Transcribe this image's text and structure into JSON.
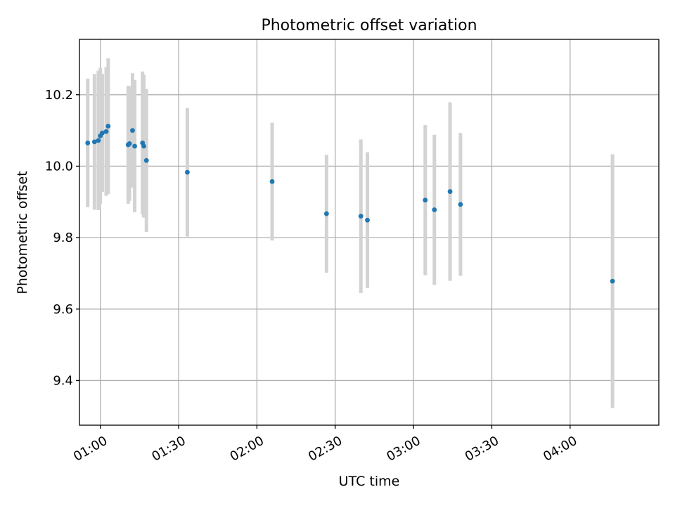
{
  "chart_data": {
    "type": "scatter",
    "title": "Photometric offset variation",
    "xlabel": "UTC time",
    "ylabel": "Photometric offset",
    "xlim": [
      "00:52",
      "04:34"
    ],
    "ylim": [
      9.275,
      10.355
    ],
    "x_ticks": [
      "01:00",
      "01:30",
      "02:00",
      "02:30",
      "03:00",
      "03:30",
      "04:00"
    ],
    "y_ticks": [
      9.4,
      9.6,
      9.8,
      10.0,
      10.2
    ],
    "grid": true,
    "point_color": "#1f77b4",
    "errorbar_color": "#d3d3d3",
    "points": [
      {
        "x": "00:55:10",
        "y": 10.065,
        "err": 0.18
      },
      {
        "x": "00:57:45",
        "y": 10.068,
        "err": 0.19
      },
      {
        "x": "00:59:15",
        "y": 10.072,
        "err": 0.195
      },
      {
        "x": "01:00:00",
        "y": 10.085,
        "err": 0.19
      },
      {
        "x": "01:00:45",
        "y": 10.093,
        "err": 0.165
      },
      {
        "x": "01:02:15",
        "y": 10.097,
        "err": 0.18
      },
      {
        "x": "01:03:00",
        "y": 10.112,
        "err": 0.19
      },
      {
        "x": "01:10:40",
        "y": 10.06,
        "err": 0.165
      },
      {
        "x": "01:11:10",
        "y": 10.063,
        "err": 0.16
      },
      {
        "x": "01:12:20",
        "y": 10.1,
        "err": 0.16
      },
      {
        "x": "01:13:10",
        "y": 10.056,
        "err": 0.185
      },
      {
        "x": "01:16:10",
        "y": 10.065,
        "err": 0.2
      },
      {
        "x": "01:16:40",
        "y": 10.056,
        "err": 0.2
      },
      {
        "x": "01:17:40",
        "y": 10.016,
        "err": 0.2
      },
      {
        "x": "01:33:20",
        "y": 9.983,
        "err": 0.18
      },
      {
        "x": "02:05:50",
        "y": 9.957,
        "err": 0.165
      },
      {
        "x": "02:26:40",
        "y": 9.867,
        "err": 0.165
      },
      {
        "x": "02:39:50",
        "y": 9.86,
        "err": 0.215
      },
      {
        "x": "02:42:20",
        "y": 9.849,
        "err": 0.19
      },
      {
        "x": "03:04:30",
        "y": 9.905,
        "err": 0.21
      },
      {
        "x": "03:08:00",
        "y": 9.878,
        "err": 0.21
      },
      {
        "x": "03:14:00",
        "y": 9.929,
        "err": 0.25
      },
      {
        "x": "03:18:00",
        "y": 9.893,
        "err": 0.2
      },
      {
        "x": "04:16:15",
        "y": 9.678,
        "err": 0.355
      }
    ]
  }
}
